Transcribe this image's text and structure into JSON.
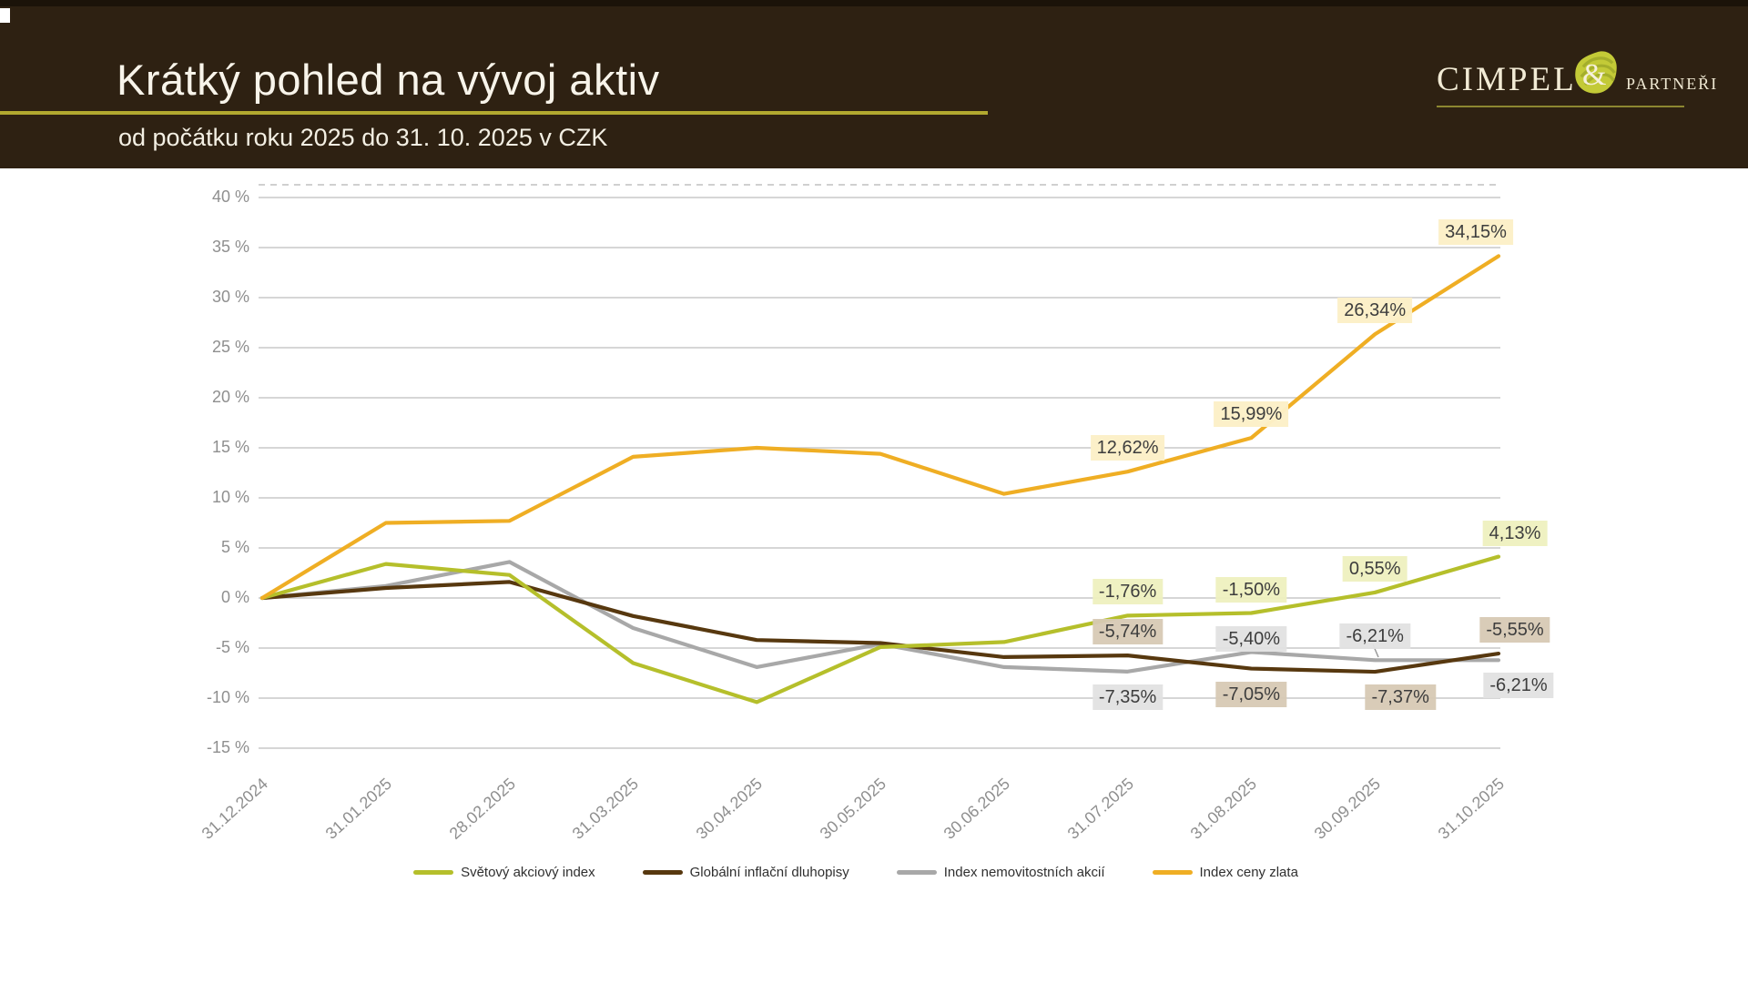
{
  "header": {
    "title": "Krátký pohled na vývoj aktiv",
    "subtitle": "od počátku roku 2025 do 31. 10. 2025 v CZK",
    "logo": {
      "name": "CIMPEL",
      "amp": "&",
      "suffix": "PARTNEŘI"
    }
  },
  "chart_data": {
    "type": "line",
    "title": "",
    "xlabel": "",
    "ylabel": "",
    "ylim": [
      -15,
      40
    ],
    "grid": true,
    "legend_position": "bottom",
    "categories": [
      "31.12.2024",
      "31.01.2025",
      "28.02.2025",
      "31.03.2025",
      "30.04.2025",
      "30.05.2025",
      "30.06.2025",
      "31.07.2025",
      "31.08.2025",
      "30.09.2025",
      "31.10.2025"
    ],
    "yticks": {
      "labels": [
        "40 %",
        "35 %",
        "30 %",
        "25 %",
        "20 %",
        "15 %",
        "10 %",
        "5 %",
        "0 %",
        "-5 %",
        "-10 %",
        "-15 %"
      ],
      "values": [
        40,
        35,
        30,
        25,
        20,
        15,
        10,
        5,
        0,
        -5,
        -10,
        -15
      ]
    },
    "series": [
      {
        "name": "Světový akciový index",
        "color": "#b5bf2b",
        "label_bg": "#eef0bf",
        "values": [
          0,
          3.4,
          2.3,
          -6.5,
          -10.4,
          -4.9,
          -4.4,
          -1.76,
          -1.5,
          0.55,
          4.13
        ]
      },
      {
        "name": "Globální inflační dluhopisy",
        "color": "#57380f",
        "label_bg": "#d7c9b4",
        "values": [
          0,
          1.0,
          1.6,
          -1.8,
          -4.2,
          -4.5,
          -5.9,
          -5.74,
          -7.05,
          -7.37,
          -5.55
        ]
      },
      {
        "name": "Index nemovitostních akcií",
        "color": "#a8a8a8",
        "label_bg": "#e2e2e2",
        "values": [
          0,
          1.2,
          3.6,
          -3.0,
          -6.9,
          -4.6,
          -6.9,
          -7.35,
          -5.4,
          -6.21,
          -6.21
        ]
      },
      {
        "name": "Index ceny zlata",
        "color": "#efae24",
        "label_bg": "#fcefc7",
        "values": [
          0,
          7.5,
          7.7,
          14.1,
          15.0,
          14.4,
          10.4,
          12.62,
          15.99,
          26.34,
          34.15
        ]
      }
    ],
    "data_labels": [
      {
        "series": 3,
        "index": 7,
        "text": "12,62%",
        "pos": "above"
      },
      {
        "series": 3,
        "index": 8,
        "text": "15,99%",
        "pos": "above"
      },
      {
        "series": 3,
        "index": 9,
        "text": "26,34%",
        "pos": "above"
      },
      {
        "series": 3,
        "index": 10,
        "text": "34,15%",
        "pos": "above",
        "dx": -25
      },
      {
        "series": 0,
        "index": 7,
        "text": "-1,76%",
        "pos": "above"
      },
      {
        "series": 0,
        "index": 8,
        "text": "-1,50%",
        "pos": "above"
      },
      {
        "series": 0,
        "index": 9,
        "text": "0,55%",
        "pos": "above"
      },
      {
        "series": 0,
        "index": 10,
        "text": "4,13%",
        "pos": "above",
        "dx": 18
      },
      {
        "series": 1,
        "index": 7,
        "text": "-5,74%",
        "pos": "above"
      },
      {
        "series": 1,
        "index": 8,
        "text": "-7,05%",
        "pos": "below"
      },
      {
        "series": 1,
        "index": 9,
        "text": "-7,37%",
        "pos": "below",
        "dx": 28
      },
      {
        "series": 1,
        "index": 10,
        "text": "-5,55%",
        "pos": "above",
        "dx": 18
      },
      {
        "series": 2,
        "index": 7,
        "text": "-7,35%",
        "pos": "below"
      },
      {
        "series": 2,
        "index": 8,
        "text": "-5,40%",
        "pos": "above",
        "dy": 12
      },
      {
        "series": 2,
        "index": 9,
        "text": "-6,21%",
        "pos": "above"
      },
      {
        "series": 2,
        "index": 10,
        "text": "-6,21%",
        "pos": "below",
        "dx": 22
      }
    ]
  }
}
